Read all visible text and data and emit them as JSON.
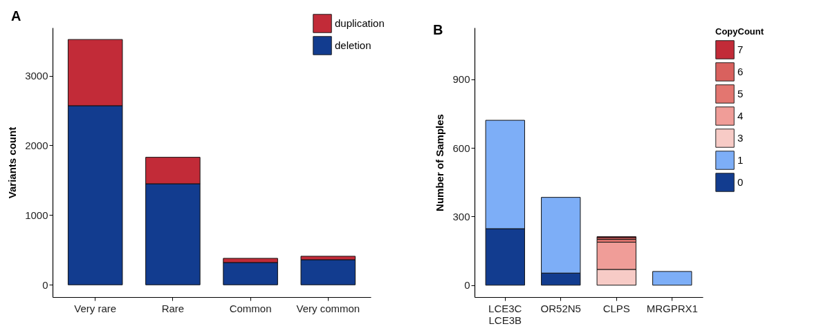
{
  "chart_data": [
    {
      "type": "bar",
      "title": "A",
      "ylabel": "Variants count",
      "categories": [
        "Very rare",
        "Rare",
        "Common",
        "Very common"
      ],
      "stacked": true,
      "series": [
        {
          "name": "deletion",
          "color": "#123c8f",
          "values": [
            2570,
            1450,
            320,
            360
          ]
        },
        {
          "name": "duplication",
          "color": "#c22b38",
          "values": [
            950,
            380,
            60,
            50
          ]
        }
      ],
      "ylim": [
        -176,
        3690
      ],
      "yticks": [
        0,
        1000,
        2000,
        3000
      ],
      "grid": false,
      "legend": "top right"
    },
    {
      "type": "bar",
      "title": "B",
      "ylabel": "Number of Samples",
      "legend_title": "CopyCount",
      "categories": [
        "LCE3C\nLCE3B",
        "OR52N5",
        "CLPS",
        "MRGPRX1"
      ],
      "stacked": true,
      "series": [
        {
          "name": "0",
          "color": "#123c8f",
          "values": [
            247,
            53,
            null,
            null
          ]
        },
        {
          "name": "1",
          "color": "#7daef7",
          "values": [
            474,
            331,
            null,
            60
          ]
        },
        {
          "name": "3",
          "color": "#f7cbc6",
          "values": [
            null,
            null,
            69,
            null
          ]
        },
        {
          "name": "4",
          "color": "#f09d98",
          "values": [
            null,
            null,
            119,
            null
          ]
        },
        {
          "name": "5",
          "color": "#e37670",
          "values": [
            null,
            null,
            12,
            null
          ]
        },
        {
          "name": "6",
          "color": "#d9615e",
          "values": [
            null,
            null,
            8,
            null
          ]
        },
        {
          "name": "7",
          "color": "#c22b38",
          "values": [
            null,
            null,
            4,
            null
          ]
        }
      ],
      "ylim": [
        -52,
        1126
      ],
      "yticks": [
        0,
        300,
        600,
        900
      ],
      "grid": false,
      "legend": "right"
    }
  ]
}
